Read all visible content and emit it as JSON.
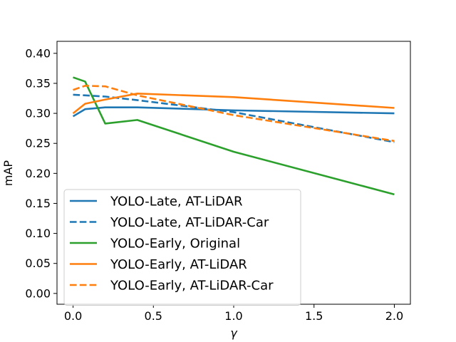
{
  "chart_data": {
    "type": "line",
    "title": "",
    "xlabel": "γ",
    "ylabel": "mAP",
    "xlim": [
      -0.1,
      2.1
    ],
    "ylim": [
      -0.018,
      0.42
    ],
    "xticks": [
      0.0,
      0.5,
      1.0,
      1.5,
      2.0
    ],
    "xtick_labels": [
      "0.0",
      "0.5",
      "1.0",
      "1.5",
      "2.0"
    ],
    "yticks": [
      0.0,
      0.05,
      0.1,
      0.15,
      0.2,
      0.25,
      0.3,
      0.35,
      0.4
    ],
    "ytick_labels": [
      "0.00",
      "0.05",
      "0.10",
      "0.15",
      "0.20",
      "0.25",
      "0.30",
      "0.35",
      "0.40"
    ],
    "grid": false,
    "legend_position": "lower-left",
    "series": [
      {
        "name": "YOLO-Late, AT-LiDAR",
        "color": "#1f77b4",
        "dash": "solid",
        "x": [
          0.0,
          0.075,
          0.2,
          0.4,
          1.0,
          2.0
        ],
        "y": [
          0.295,
          0.307,
          0.31,
          0.31,
          0.305,
          0.3
        ]
      },
      {
        "name": "YOLO-Late, AT-LiDAR-Car",
        "color": "#1f77b4",
        "dash": "dashed",
        "x": [
          0.0,
          0.075,
          0.2,
          0.4,
          1.0,
          2.0
        ],
        "y": [
          0.331,
          0.33,
          0.328,
          0.322,
          0.302,
          0.252
        ]
      },
      {
        "name": "YOLO-Early, Original",
        "color": "#2ca02c",
        "dash": "solid",
        "x": [
          0.0,
          0.075,
          0.2,
          0.4,
          1.0,
          2.0
        ],
        "y": [
          0.36,
          0.353,
          0.283,
          0.289,
          0.236,
          0.165
        ]
      },
      {
        "name": "YOLO-Early, AT-LiDAR",
        "color": "#ff7f0e",
        "dash": "solid",
        "x": [
          0.0,
          0.075,
          0.2,
          0.4,
          1.0,
          2.0
        ],
        "y": [
          0.3,
          0.316,
          0.323,
          0.333,
          0.327,
          0.309
        ]
      },
      {
        "name": "YOLO-Early, AT-LiDAR-Car",
        "color": "#ff7f0e",
        "dash": "dashed",
        "x": [
          0.0,
          0.075,
          0.2,
          0.4,
          1.0,
          2.0
        ],
        "y": [
          0.339,
          0.346,
          0.345,
          0.33,
          0.297,
          0.254
        ]
      }
    ]
  }
}
